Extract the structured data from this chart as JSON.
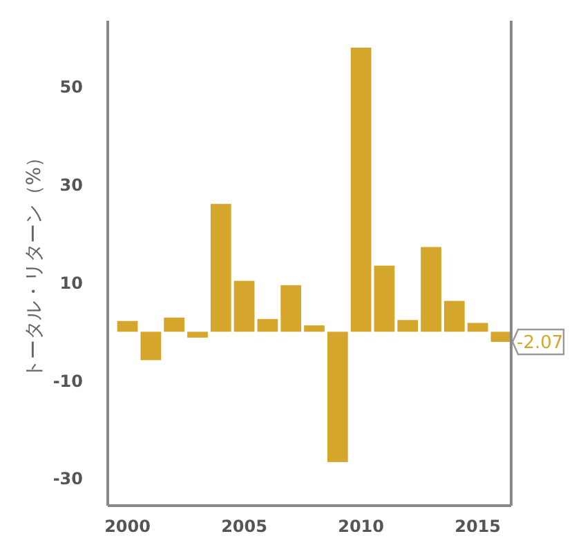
{
  "chart_data": {
    "type": "bar",
    "ylabel": "トータル・リターン（%）",
    "categories": [
      "2000",
      null,
      null,
      null,
      null,
      "2005",
      null,
      null,
      null,
      null,
      "2010",
      null,
      null,
      null,
      null,
      "2015",
      null
    ],
    "values": [
      2.2,
      -5.8,
      2.9,
      -1.2,
      26.1,
      10.4,
      2.6,
      9.5,
      1.3,
      -26.6,
      58,
      13.5,
      2.4,
      17.3,
      6.3,
      1.8,
      -2.07
    ],
    "annotations": [
      {
        "text": "-2.07",
        "y": -2.07
      }
    ],
    "color": "#d4a72c",
    "ylim": [
      -35.5,
      63.5
    ],
    "yticks": [
      -30,
      -10,
      10,
      30,
      50
    ],
    "grid": false
  }
}
